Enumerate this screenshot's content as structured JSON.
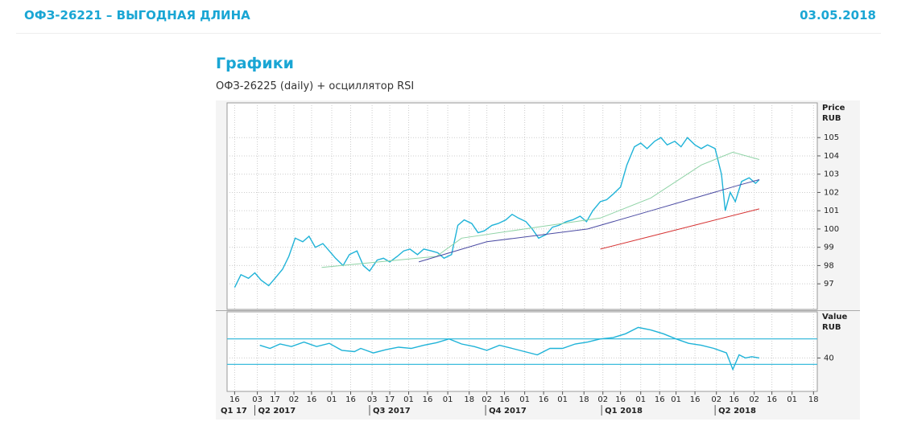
{
  "header": {
    "title": "ОФЗ-26221 – ВЫГОДНАЯ ДЛИНА",
    "date": "03.05.2018"
  },
  "section_title": "Графики",
  "subtitle": "ОФЗ-26225 (daily) + осциллятор RSI",
  "chart_data": [
    {
      "type": "line",
      "ylabel": "Price",
      "yunit": "RUB",
      "xlim": [
        -6,
        462
      ],
      "ylim": [
        95.6,
        106.9
      ],
      "yticks": [
        97,
        98,
        99,
        100,
        101,
        102,
        103,
        104,
        105
      ],
      "grid": true,
      "series": [
        {
          "color": "#1fb3d8",
          "x": [
            0,
            5,
            11,
            16,
            21,
            27,
            32,
            38,
            43,
            48,
            54,
            59,
            64,
            70,
            75,
            80,
            86,
            91,
            97,
            102,
            107,
            113,
            118,
            123,
            129,
            134,
            139,
            145,
            150,
            156,
            161,
            166,
            172,
            177,
            182,
            188,
            193,
            198,
            204,
            209,
            215,
            220,
            225,
            231,
            236,
            241,
            247,
            252,
            257,
            263,
            268,
            274,
            279,
            284,
            290,
            295,
            300,
            306,
            311,
            317,
            322,
            327,
            333,
            338,
            343,
            349,
            354,
            359,
            365,
            370,
            375,
            381,
            386,
            389,
            393,
            397,
            402,
            408,
            413,
            416
          ],
          "values": [
            96.8,
            97.5,
            97.3,
            97.6,
            97.2,
            96.9,
            97.3,
            97.8,
            98.5,
            99.5,
            99.3,
            99.6,
            99.0,
            99.2,
            98.8,
            98.4,
            98.0,
            98.6,
            98.8,
            98.0,
            97.7,
            98.3,
            98.4,
            98.2,
            98.5,
            98.8,
            98.9,
            98.6,
            98.9,
            98.8,
            98.7,
            98.4,
            98.6,
            100.2,
            100.5,
            100.3,
            99.8,
            99.9,
            100.2,
            100.3,
            100.5,
            100.8,
            100.6,
            100.4,
            100.0,
            99.5,
            99.7,
            100.1,
            100.2,
            100.4,
            100.5,
            100.7,
            100.4,
            101.0,
            101.5,
            101.6,
            101.9,
            102.3,
            103.5,
            104.5,
            104.7,
            104.4,
            104.8,
            105.0,
            104.6,
            104.8,
            104.5,
            105.0,
            104.6,
            104.4,
            104.6,
            104.4,
            103.0,
            101.0,
            102.0,
            101.5,
            102.6,
            102.8,
            102.5,
            102.7
          ]
        },
        {
          "color": "#8fd3a6",
          "x": [
            69,
            160,
            180,
            230,
            290,
            330,
            370,
            395,
            416
          ],
          "values": [
            97.9,
            98.5,
            99.5,
            100.0,
            100.6,
            101.7,
            103.5,
            104.2,
            103.8
          ]
        },
        {
          "color": "#4b4ba3",
          "x": [
            146,
            200,
            280,
            330,
            370,
            400,
            416
          ],
          "values": [
            98.2,
            99.3,
            100.0,
            101.0,
            101.8,
            102.4,
            102.7
          ]
        },
        {
          "color": "#d63333",
          "x": [
            290,
            330,
            370,
            416
          ],
          "values": [
            98.9,
            99.6,
            100.3,
            101.1
          ]
        }
      ]
    },
    {
      "type": "line",
      "ylabel": "Value",
      "yunit": "RUB",
      "xlim": [
        -6,
        462
      ],
      "ylim": [
        -12.5,
        112.5
      ],
      "yticks": [
        40
      ],
      "levels": [
        30,
        70
      ],
      "grid": true,
      "xticks": [
        {
          "value": 0,
          "label": "16"
        },
        {
          "value": 18,
          "label": "03"
        },
        {
          "value": 32,
          "label": "17"
        },
        {
          "value": 47,
          "label": "02"
        },
        {
          "value": 61,
          "label": "16"
        },
        {
          "value": 77,
          "label": "01"
        },
        {
          "value": 92,
          "label": "16"
        },
        {
          "value": 109,
          "label": "03"
        },
        {
          "value": 123,
          "label": "17"
        },
        {
          "value": 138,
          "label": "01"
        },
        {
          "value": 153,
          "label": "16"
        },
        {
          "value": 169,
          "label": "01"
        },
        {
          "value": 186,
          "label": "18"
        },
        {
          "value": 200,
          "label": "02"
        },
        {
          "value": 214,
          "label": "16"
        },
        {
          "value": 230,
          "label": "01"
        },
        {
          "value": 245,
          "label": "16"
        },
        {
          "value": 260,
          "label": "01"
        },
        {
          "value": 277,
          "label": "18"
        },
        {
          "value": 292,
          "label": "02"
        },
        {
          "value": 306,
          "label": "16"
        },
        {
          "value": 322,
          "label": "01"
        },
        {
          "value": 337,
          "label": "16"
        },
        {
          "value": 350,
          "label": "01"
        },
        {
          "value": 365,
          "label": "16"
        },
        {
          "value": 382,
          "label": "02"
        },
        {
          "value": 396,
          "label": "16"
        },
        {
          "value": 412,
          "label": "02"
        },
        {
          "value": 426,
          "label": "16"
        },
        {
          "value": 442,
          "label": "01"
        },
        {
          "value": 459,
          "label": "18"
        }
      ],
      "quarters": [
        {
          "value": -74,
          "label": "Q1 17"
        },
        {
          "value": 16,
          "label": "Q2 2017"
        },
        {
          "value": 107,
          "label": "Q3 2017"
        },
        {
          "value": 199,
          "label": "Q4 2017"
        },
        {
          "value": 291,
          "label": "Q1 2018"
        },
        {
          "value": 381,
          "label": "Q2 2018"
        }
      ],
      "series": [
        {
          "color": "#1fb3d8",
          "x": [
            20,
            28,
            36,
            45,
            55,
            65,
            75,
            85,
            95,
            100,
            110,
            120,
            130,
            140,
            150,
            160,
            170,
            180,
            190,
            200,
            210,
            220,
            230,
            240,
            250,
            260,
            270,
            280,
            290,
            300,
            310,
            320,
            330,
            340,
            350,
            360,
            370,
            380,
            390,
            395,
            400,
            405,
            410,
            416
          ],
          "values": [
            60,
            55,
            62,
            58,
            65,
            58,
            63,
            52,
            50,
            55,
            48,
            53,
            57,
            55,
            60,
            64,
            70,
            62,
            58,
            52,
            60,
            55,
            50,
            45,
            55,
            55,
            62,
            65,
            70,
            72,
            78,
            88,
            84,
            78,
            70,
            63,
            60,
            55,
            48,
            22,
            45,
            40,
            42,
            40
          ]
        }
      ]
    }
  ]
}
